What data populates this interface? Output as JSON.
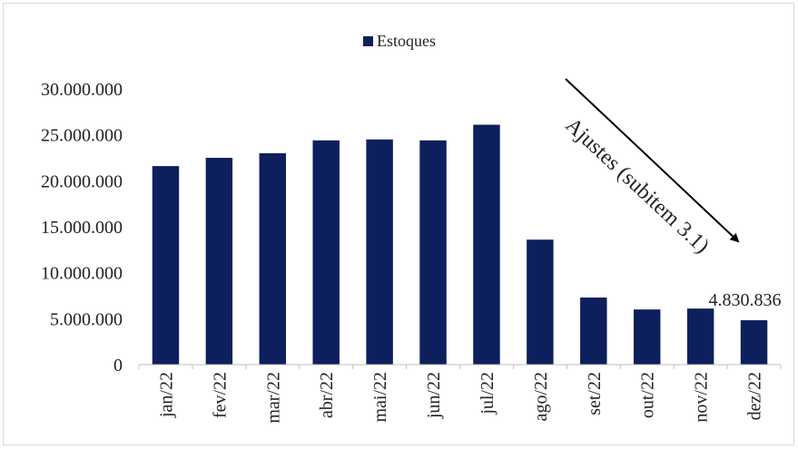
{
  "chart_data": {
    "type": "bar",
    "title": "",
    "xlabel": "",
    "ylabel": "",
    "categories": [
      "jan/22",
      "fev/22",
      "mar/22",
      "abr/22",
      "mai/22",
      "jun/22",
      "jul/22",
      "ago/22",
      "set/22",
      "out/22",
      "nov/22",
      "dez/22"
    ],
    "series": [
      {
        "name": "Estoques",
        "values": [
          21600000,
          22500000,
          23000000,
          24400000,
          24500000,
          24400000,
          26100000,
          13600000,
          7300000,
          6000000,
          6100000,
          4830836
        ]
      }
    ],
    "ylim": [
      0,
      30000000
    ],
    "yticks": [
      {
        "value": 0,
        "label": "0"
      },
      {
        "value": 5000000,
        "label": "5.000.000"
      },
      {
        "value": 10000000,
        "label": "10.000.000"
      },
      {
        "value": 15000000,
        "label": "15.000.000"
      },
      {
        "value": 20000000,
        "label": "20.000.000"
      },
      {
        "value": 25000000,
        "label": "25.000.000"
      },
      {
        "value": 30000000,
        "label": "30.000.000"
      }
    ],
    "legend_position": "top",
    "grid": false,
    "bar_color": "#0d1f5c",
    "data_labels": [
      {
        "category": "dez/22",
        "text": "4.830.836"
      }
    ],
    "annotation": {
      "text": "Ajustes (subitem 3.1)",
      "type": "arrow-down-right"
    }
  }
}
